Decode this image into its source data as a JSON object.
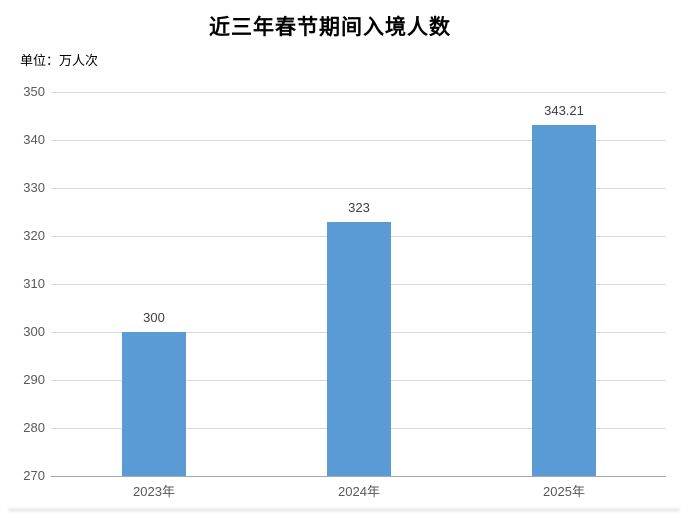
{
  "page": {
    "title": "近三年春节期间入境人数",
    "unit_label": "单位：万人次"
  },
  "chart_data": {
    "type": "bar",
    "title": "近三年春节期间入境人数",
    "subtitle": "单位：万人次",
    "categories": [
      "2023年",
      "2024年",
      "2025年"
    ],
    "values": [
      300,
      323,
      343.21
    ],
    "data_labels": [
      "300",
      "323",
      "343.21"
    ],
    "xlabel": "",
    "ylabel": "",
    "ylim": [
      270,
      350
    ],
    "yticks": [
      270,
      280,
      290,
      300,
      310,
      320,
      330,
      340,
      350
    ],
    "grid": true,
    "legend_position": "none",
    "colors": {
      "bar": "#5B9BD5",
      "gridline": "#D9D9D9",
      "axis_line": "#A6A6A6",
      "tick_label": "#595959",
      "x_label": "#595959",
      "data_label": "#404040",
      "title": "#000000",
      "unit_label": "#000000",
      "background": "#FFFFFF"
    }
  }
}
